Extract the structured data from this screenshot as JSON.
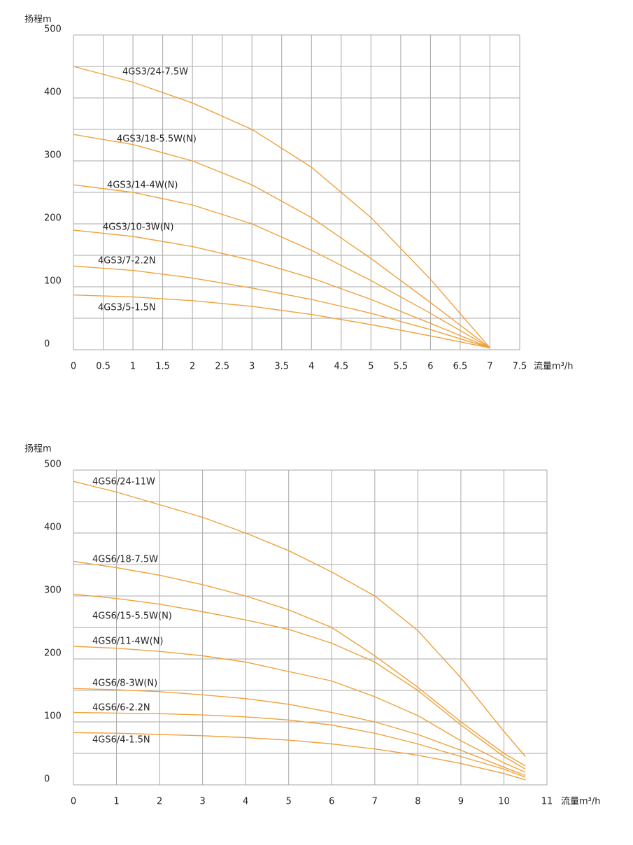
{
  "chart_data": [
    {
      "type": "line",
      "y_label": "扬程m",
      "x_label": "流量m³/h",
      "x": [
        0,
        1,
        2,
        3,
        4,
        5,
        6,
        7
      ],
      "xlim": [
        0,
        7.5
      ],
      "xticks": [
        0,
        0.5,
        1,
        1.5,
        2,
        2.5,
        3,
        3.5,
        4,
        4.5,
        5,
        5.5,
        6,
        6.5,
        7,
        7.5
      ],
      "ylim": [
        0,
        500
      ],
      "yticks": [
        0,
        100,
        200,
        300,
        400,
        500
      ],
      "minor_yticks": [
        50,
        150,
        250,
        350,
        450
      ],
      "grid": true,
      "series": [
        {
          "name": "4GS3/24-7.5W",
          "color": "#f0a23c",
          "values": [
            450,
            425,
            392,
            350,
            290,
            210,
            112,
            3
          ]
        },
        {
          "name": "4GS3/18-5.5W(N)",
          "color": "#f0a23c",
          "values": [
            342,
            326,
            300,
            262,
            210,
            145,
            75,
            3
          ]
        },
        {
          "name": "4GS3/14-4W(N)",
          "color": "#f0a23c",
          "values": [
            262,
            250,
            230,
            200,
            158,
            110,
            58,
            3
          ]
        },
        {
          "name": "4GS3/10-3W(N)",
          "color": "#f0a23c",
          "values": [
            190,
            180,
            164,
            142,
            114,
            80,
            42,
            3
          ]
        },
        {
          "name": "4GS3/7-2.2N",
          "color": "#f0a23c",
          "values": [
            133,
            126,
            114,
            98,
            80,
            58,
            32,
            3
          ]
        },
        {
          "name": "4GS3/5-1.5N",
          "color": "#f0a23c",
          "values": [
            87,
            84,
            78,
            69,
            56,
            40,
            22,
            3
          ]
        }
      ]
    },
    {
      "type": "line",
      "y_label": "扬程m",
      "x_label": "流量m³/h",
      "x": [
        0,
        1,
        2,
        3,
        4,
        5,
        6,
        7,
        8,
        9,
        10,
        10.5
      ],
      "xlim": [
        0,
        11
      ],
      "xticks": [
        0,
        1,
        2,
        3,
        4,
        5,
        6,
        7,
        8,
        9,
        10,
        11
      ],
      "ylim": [
        0,
        500
      ],
      "yticks": [
        0,
        100,
        200,
        300,
        400,
        500
      ],
      "minor_yticks": [
        50,
        150,
        250,
        350,
        450
      ],
      "grid": true,
      "series": [
        {
          "name": "4GS6/24-11W",
          "color": "#f0a23c",
          "values": [
            482,
            465,
            445,
            425,
            400,
            372,
            338,
            300,
            245,
            170,
            85,
            45
          ]
        },
        {
          "name": "4GS6/18-7.5W",
          "color": "#f0a23c",
          "values": [
            355,
            345,
            333,
            318,
            300,
            278,
            250,
            205,
            155,
            100,
            50,
            30
          ]
        },
        {
          "name": "4GS6/15-5.5W(N)",
          "color": "#f0a23c",
          "values": [
            303,
            296,
            287,
            275,
            262,
            247,
            225,
            195,
            150,
            95,
            45,
            25
          ]
        },
        {
          "name": "4GS6/11-4W(N)",
          "color": "#f0a23c",
          "values": [
            220,
            217,
            212,
            205,
            195,
            180,
            165,
            140,
            110,
            70,
            35,
            20
          ]
        },
        {
          "name": "4GS6/8-3W(N)",
          "color": "#f0a23c",
          "values": [
            153,
            151,
            148,
            143,
            137,
            128,
            115,
            100,
            80,
            55,
            28,
            15
          ]
        },
        {
          "name": "4GS6/6-2.2N",
          "color": "#f0a23c",
          "values": [
            115,
            114,
            113,
            111,
            108,
            103,
            95,
            82,
            65,
            45,
            25,
            12
          ]
        },
        {
          "name": "4GS6/4-1.5N",
          "color": "#f0a23c",
          "values": [
            83,
            82,
            80,
            78,
            75,
            71,
            65,
            57,
            47,
            34,
            18,
            8
          ]
        }
      ]
    }
  ]
}
